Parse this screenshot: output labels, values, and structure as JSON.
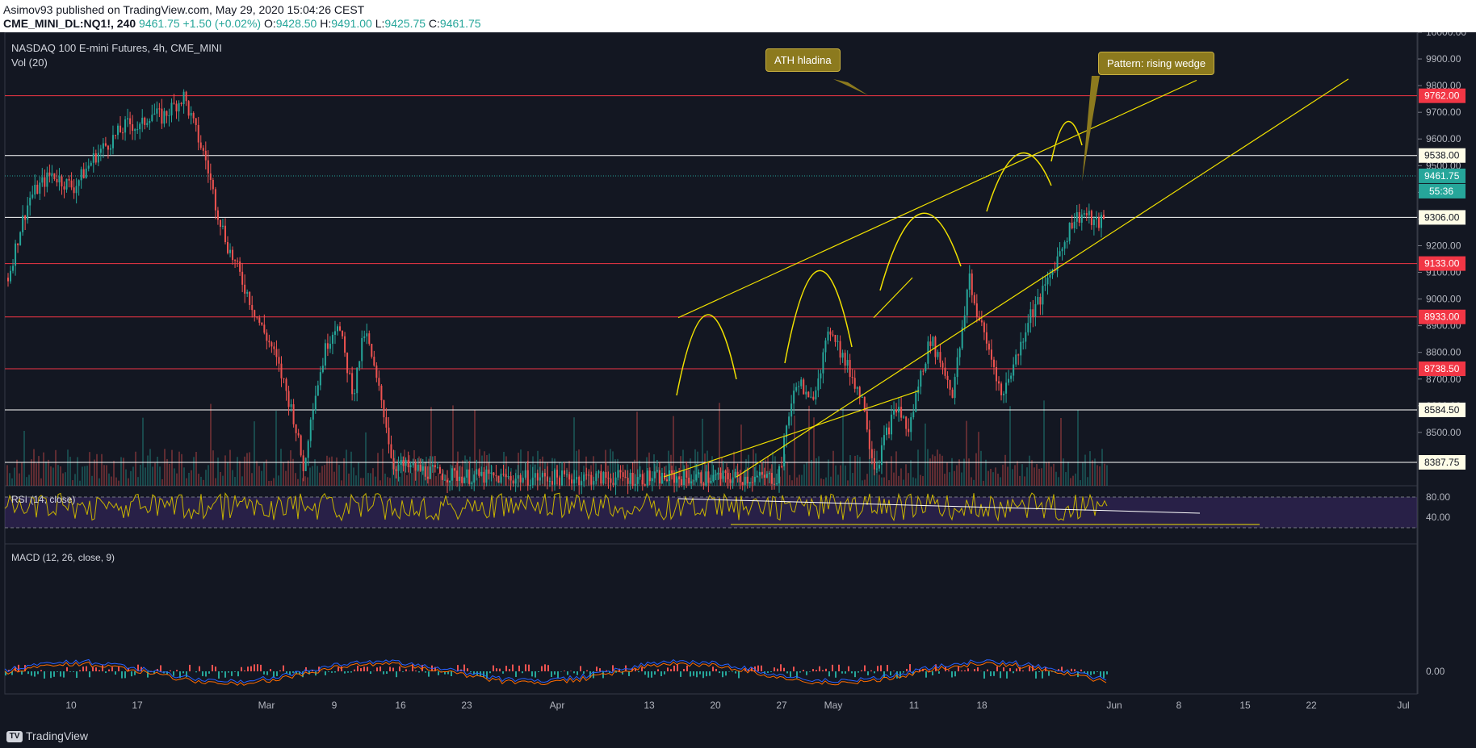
{
  "header": {
    "publisher_line": "Asimov93 published on TradingView.com, May 29, 2020 15:04:26 CEST",
    "symbol": "CME_MINI_DL:NQ1!, 240",
    "last": "9461.75",
    "change": "+1.50 (+0.02%)",
    "o_label": "O:",
    "o": "9428.50",
    "h_label": "H:",
    "h": "9491.00",
    "l_label": "L:",
    "l": "9425.75",
    "c_label": "C:",
    "c": "9461.75"
  },
  "chart_title": "NASDAQ 100 E-mini Futures, 4h, CME_MINI",
  "vol_label": "Vol (20)",
  "rsi_label": "RSI (14, close)",
  "macd_label": "MACD (12, 26, close, 9)",
  "footer": {
    "brand": "TradingView",
    "logo_icon": "tradingview-logo-icon"
  },
  "countdown": "55:36",
  "annotations": [
    {
      "text": "ATH hladina"
    },
    {
      "text": "Pattern: rising wedge"
    }
  ],
  "colors": {
    "background": "#131722",
    "up": "#26a69a",
    "down": "#ef5350",
    "resistance": "#f23645",
    "support": "#ffffff",
    "trendline": "#f0e000",
    "rsi": "#c8b400",
    "macd": "#2962ff",
    "signal": "#ff6d00"
  },
  "chart_data": {
    "type": "candlestick",
    "price_axis": {
      "min": 8300,
      "max": 10000,
      "ticks": [
        "10000.00",
        "9900.00",
        "9800.00",
        "9700.00",
        "9600.00",
        "9500.00",
        "9400.00",
        "9300.00",
        "9200.00",
        "9100.00",
        "9000.00",
        "8900.00",
        "8800.00",
        "8700.00",
        "8600.00",
        "8500.00"
      ]
    },
    "time_axis": {
      "labels": [
        "10",
        "17",
        "Mar",
        "9",
        "16",
        "23",
        "Apr",
        "13",
        "20",
        "27",
        "May",
        "11",
        "18",
        "Jun",
        "8",
        "15",
        "22",
        "Jul"
      ]
    },
    "levels": [
      {
        "price": 9762,
        "label": "9762.00",
        "kind": "resistance"
      },
      {
        "price": 9538,
        "label": "9538.00",
        "kind": "support"
      },
      {
        "price": 9306,
        "label": "9306.00",
        "kind": "support"
      },
      {
        "price": 9133,
        "label": "9133.00",
        "kind": "resistance"
      },
      {
        "price": 8933,
        "label": "8933.00",
        "kind": "resistance"
      },
      {
        "price": 8738.5,
        "label": "8738.50",
        "kind": "resistance"
      },
      {
        "price": 8584.5,
        "label": "8584.50",
        "kind": "support"
      },
      {
        "price": 8387.75,
        "label": "8387.75",
        "kind": "support"
      }
    ],
    "last_price": {
      "price": 9461.75,
      "label": "9461.75"
    },
    "price_path": [
      [
        0.0,
        9080
      ],
      [
        0.012,
        9280
      ],
      [
        0.02,
        9380
      ],
      [
        0.03,
        9430
      ],
      [
        0.04,
        9470
      ],
      [
        0.05,
        9440
      ],
      [
        0.06,
        9420
      ],
      [
        0.07,
        9480
      ],
      [
        0.08,
        9540
      ],
      [
        0.09,
        9580
      ],
      [
        0.1,
        9620
      ],
      [
        0.11,
        9660
      ],
      [
        0.12,
        9640
      ],
      [
        0.13,
        9700
      ],
      [
        0.14,
        9680
      ],
      [
        0.15,
        9720
      ],
      [
        0.16,
        9760
      ],
      [
        0.165,
        9700
      ],
      [
        0.17,
        9640
      ],
      [
        0.175,
        9580
      ],
      [
        0.18,
        9520
      ],
      [
        0.19,
        9340
      ],
      [
        0.2,
        9200
      ],
      [
        0.21,
        9100
      ],
      [
        0.22,
        9000
      ],
      [
        0.23,
        8900
      ],
      [
        0.24,
        8820
      ],
      [
        0.25,
        8700
      ],
      [
        0.26,
        8560
      ],
      [
        0.265,
        8450
      ],
      [
        0.27,
        8350
      ],
      [
        0.275,
        8560
      ],
      [
        0.28,
        8650
      ],
      [
        0.29,
        8830
      ],
      [
        0.3,
        8920
      ],
      [
        0.31,
        8720
      ],
      [
        0.315,
        8650
      ],
      [
        0.32,
        8780
      ],
      [
        0.325,
        8880
      ],
      [
        0.33,
        8800
      ],
      [
        0.335,
        8700
      ],
      [
        0.34,
        8620
      ],
      [
        0.345,
        8520
      ],
      [
        0.35,
        8380
      ],
      [
        0.4,
        8340
      ],
      [
        0.45,
        8330
      ],
      [
        0.5,
        8330
      ],
      [
        0.55,
        8330
      ],
      [
        0.6,
        8330
      ],
      [
        0.65,
        8330
      ],
      [
        0.7,
        8330
      ],
      [
        0.705,
        8400
      ],
      [
        0.71,
        8560
      ],
      [
        0.72,
        8700
      ],
      [
        0.73,
        8600
      ],
      [
        0.74,
        8750
      ],
      [
        0.75,
        8900
      ],
      [
        0.76,
        8780
      ],
      [
        0.77,
        8700
      ],
      [
        0.78,
        8600
      ],
      [
        0.785,
        8450
      ],
      [
        0.79,
        8360
      ],
      [
        0.8,
        8500
      ],
      [
        0.81,
        8600
      ],
      [
        0.82,
        8500
      ],
      [
        0.83,
        8700
      ],
      [
        0.84,
        8850
      ],
      [
        0.85,
        8760
      ],
      [
        0.86,
        8650
      ],
      [
        0.87,
        8900
      ],
      [
        0.875,
        9100
      ],
      [
        0.88,
        8980
      ],
      [
        0.89,
        8850
      ],
      [
        0.9,
        8720
      ],
      [
        0.905,
        8620
      ],
      [
        0.91,
        8700
      ],
      [
        0.92,
        8800
      ],
      [
        0.93,
        8940
      ],
      [
        0.94,
        9000
      ],
      [
        0.95,
        9100
      ],
      [
        0.96,
        9200
      ],
      [
        0.97,
        9300
      ],
      [
        0.98,
        9320
      ],
      [
        0.99,
        9280
      ],
      [
        1.0,
        9300
      ]
    ],
    "rsi": {
      "levels": [
        "80.00",
        "40.00"
      ]
    },
    "macd": {
      "zero_label": "0.00"
    }
  }
}
